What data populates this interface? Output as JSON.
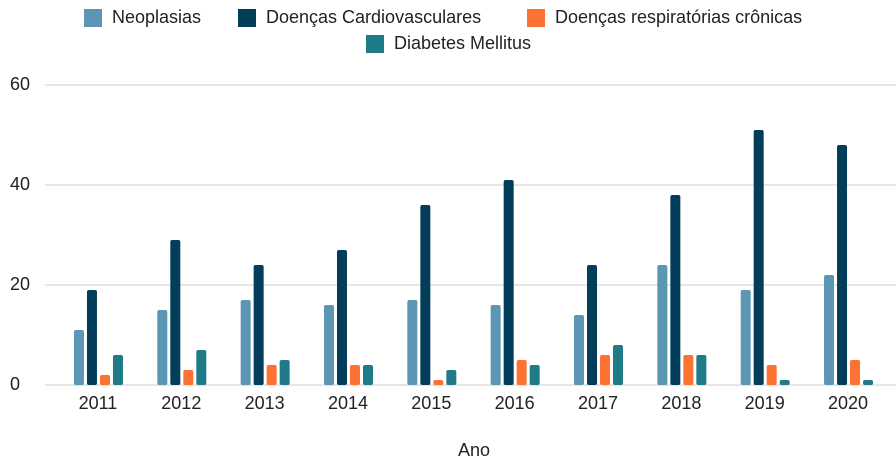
{
  "chart_data": {
    "type": "bar",
    "x_label": "Ano",
    "categories": [
      "2011",
      "2012",
      "2013",
      "2014",
      "2015",
      "2016",
      "2017",
      "2018",
      "2019",
      "2020"
    ],
    "series": [
      {
        "name": "Neoplasias",
        "color": "#5b96b4",
        "values": [
          11,
          15,
          17,
          16,
          17,
          16,
          14,
          24,
          19,
          22
        ]
      },
      {
        "name": "Doenças Cardiovasculares",
        "color": "#023e5a",
        "values": [
          19,
          29,
          24,
          27,
          36,
          41,
          24,
          38,
          51,
          48
        ]
      },
      {
        "name": "Doenças respiratórias crônicas",
        "color": "#fd7133",
        "values": [
          2,
          3,
          4,
          4,
          1,
          5,
          6,
          6,
          4,
          5
        ]
      },
      {
        "name": "Diabetes Mellitus",
        "color": "#1e7b87",
        "values": [
          6,
          7,
          5,
          4,
          3,
          4,
          8,
          6,
          1,
          1
        ]
      }
    ],
    "ylim": [
      0,
      60
    ],
    "yticks": [
      0,
      20,
      40,
      60
    ],
    "grid": true,
    "legend": "top"
  }
}
